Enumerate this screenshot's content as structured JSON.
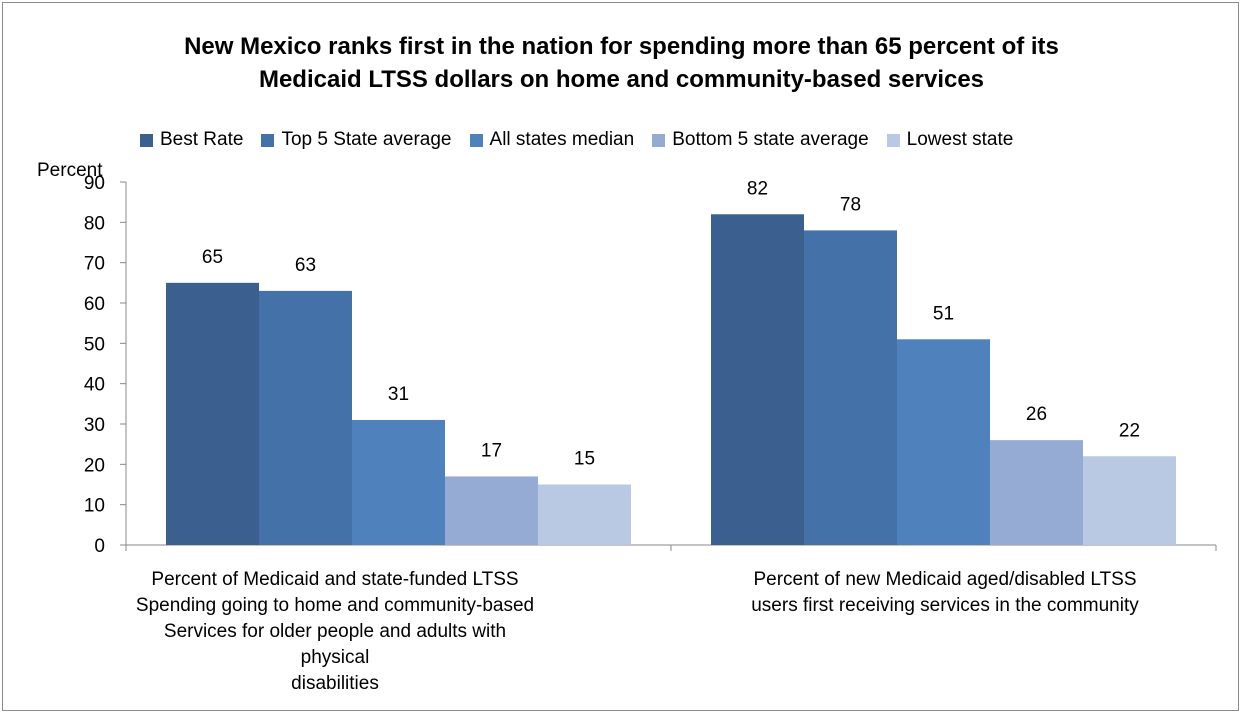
{
  "chart_data": {
    "type": "bar",
    "title_lines": [
      "New Mexico ranks first in the nation for spending more than 65 percent of its",
      "Medicaid LTSS dollars on home and community-based services"
    ],
    "ylabel": "Percent",
    "ylim": [
      0,
      90
    ],
    "yticks": [
      0,
      10,
      20,
      30,
      40,
      50,
      60,
      70,
      80,
      90
    ],
    "grid": false,
    "legend_position": "top",
    "categories": [
      "Percent of Medicaid and state-funded LTSS Spending going to home and community-based Services for older people and adults with physical disabilities",
      "Percent of new Medicaid aged/disabled LTSS users first receiving services in the community"
    ],
    "category_lines": [
      [
        "Percent of Medicaid and state-funded LTSS",
        "Spending going to home and community-based",
        "Services for older people and adults with physical",
        "disabilities"
      ],
      [
        "Percent of new Medicaid aged/disabled LTSS",
        "users first receiving services in the community"
      ]
    ],
    "series": [
      {
        "name": "Best Rate",
        "color": "#3b5f8f",
        "values": [
          65,
          82
        ]
      },
      {
        "name": "Top 5 State average",
        "color": "#4472a8",
        "values": [
          63,
          78
        ]
      },
      {
        "name": "All states median",
        "color": "#4f81bd",
        "values": [
          31,
          51
        ]
      },
      {
        "name": "Bottom 5 state average",
        "color": "#95abd3",
        "values": [
          17,
          26
        ]
      },
      {
        "name": "Lowest state",
        "color": "#b9c8e3",
        "values": [
          15,
          22
        ]
      }
    ]
  }
}
